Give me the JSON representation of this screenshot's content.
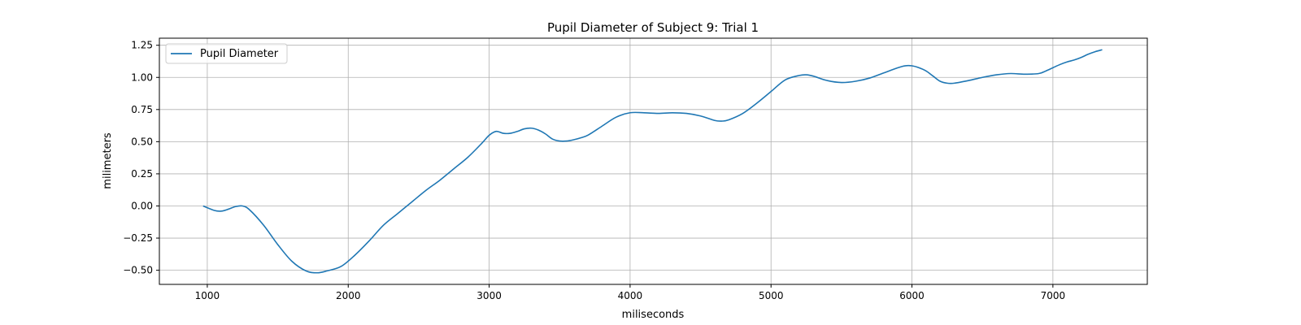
{
  "chart_data": {
    "type": "line",
    "title": "Pupil Diameter of Subject 9: Trial 1",
    "xlabel": "miliseconds",
    "ylabel": "milimeters",
    "xlim": [
      660,
      7670
    ],
    "ylim": [
      -0.61,
      1.305
    ],
    "xticks": [
      1000,
      2000,
      3000,
      4000,
      5000,
      6000,
      7000
    ],
    "yticks": [
      -0.5,
      -0.25,
      0.0,
      0.25,
      0.5,
      0.75,
      1.0,
      1.25
    ],
    "xtick_labels": [
      "1000",
      "2000",
      "3000",
      "4000",
      "5000",
      "6000",
      "7000"
    ],
    "ytick_labels": [
      "−0.50",
      "−0.25",
      "0.00",
      "0.25",
      "0.50",
      "0.75",
      "1.00",
      "1.25"
    ],
    "grid": true,
    "legend": "top-left",
    "series": [
      {
        "name": "Pupil Diameter",
        "color": "#1f77b4",
        "x": [
          970,
          1050,
          1100,
          1150,
          1200,
          1250,
          1300,
          1400,
          1500,
          1600,
          1700,
          1780,
          1850,
          1950,
          2050,
          2150,
          2250,
          2350,
          2450,
          2550,
          2650,
          2750,
          2850,
          2950,
          3000,
          3050,
          3100,
          3150,
          3200,
          3250,
          3300,
          3350,
          3400,
          3450,
          3500,
          3550,
          3600,
          3650,
          3700,
          3800,
          3900,
          4000,
          4100,
          4200,
          4300,
          4400,
          4500,
          4600,
          4650,
          4700,
          4800,
          4900,
          5000,
          5100,
          5200,
          5250,
          5300,
          5400,
          5500,
          5600,
          5700,
          5800,
          5900,
          5950,
          6000,
          6050,
          6100,
          6150,
          6200,
          6250,
          6300,
          6400,
          6500,
          6600,
          6700,
          6800,
          6900,
          6950,
          7000,
          7050,
          7100,
          7150,
          7200,
          7250,
          7300,
          7350
        ],
        "y": [
          0.0,
          -0.035,
          -0.04,
          -0.025,
          -0.005,
          0.0,
          -0.03,
          -0.15,
          -0.3,
          -0.43,
          -0.505,
          -0.52,
          -0.505,
          -0.47,
          -0.38,
          -0.27,
          -0.15,
          -0.06,
          0.03,
          0.12,
          0.2,
          0.29,
          0.38,
          0.49,
          0.55,
          0.58,
          0.565,
          0.565,
          0.58,
          0.6,
          0.605,
          0.59,
          0.56,
          0.52,
          0.505,
          0.505,
          0.515,
          0.53,
          0.55,
          0.62,
          0.69,
          0.725,
          0.725,
          0.72,
          0.725,
          0.72,
          0.7,
          0.665,
          0.66,
          0.67,
          0.72,
          0.8,
          0.89,
          0.98,
          1.015,
          1.02,
          1.01,
          0.975,
          0.96,
          0.97,
          0.995,
          1.035,
          1.075,
          1.09,
          1.09,
          1.075,
          1.05,
          1.01,
          0.97,
          0.955,
          0.955,
          0.975,
          1.0,
          1.02,
          1.03,
          1.025,
          1.03,
          1.05,
          1.075,
          1.1,
          1.12,
          1.135,
          1.155,
          1.18,
          1.2,
          1.215
        ]
      }
    ]
  }
}
